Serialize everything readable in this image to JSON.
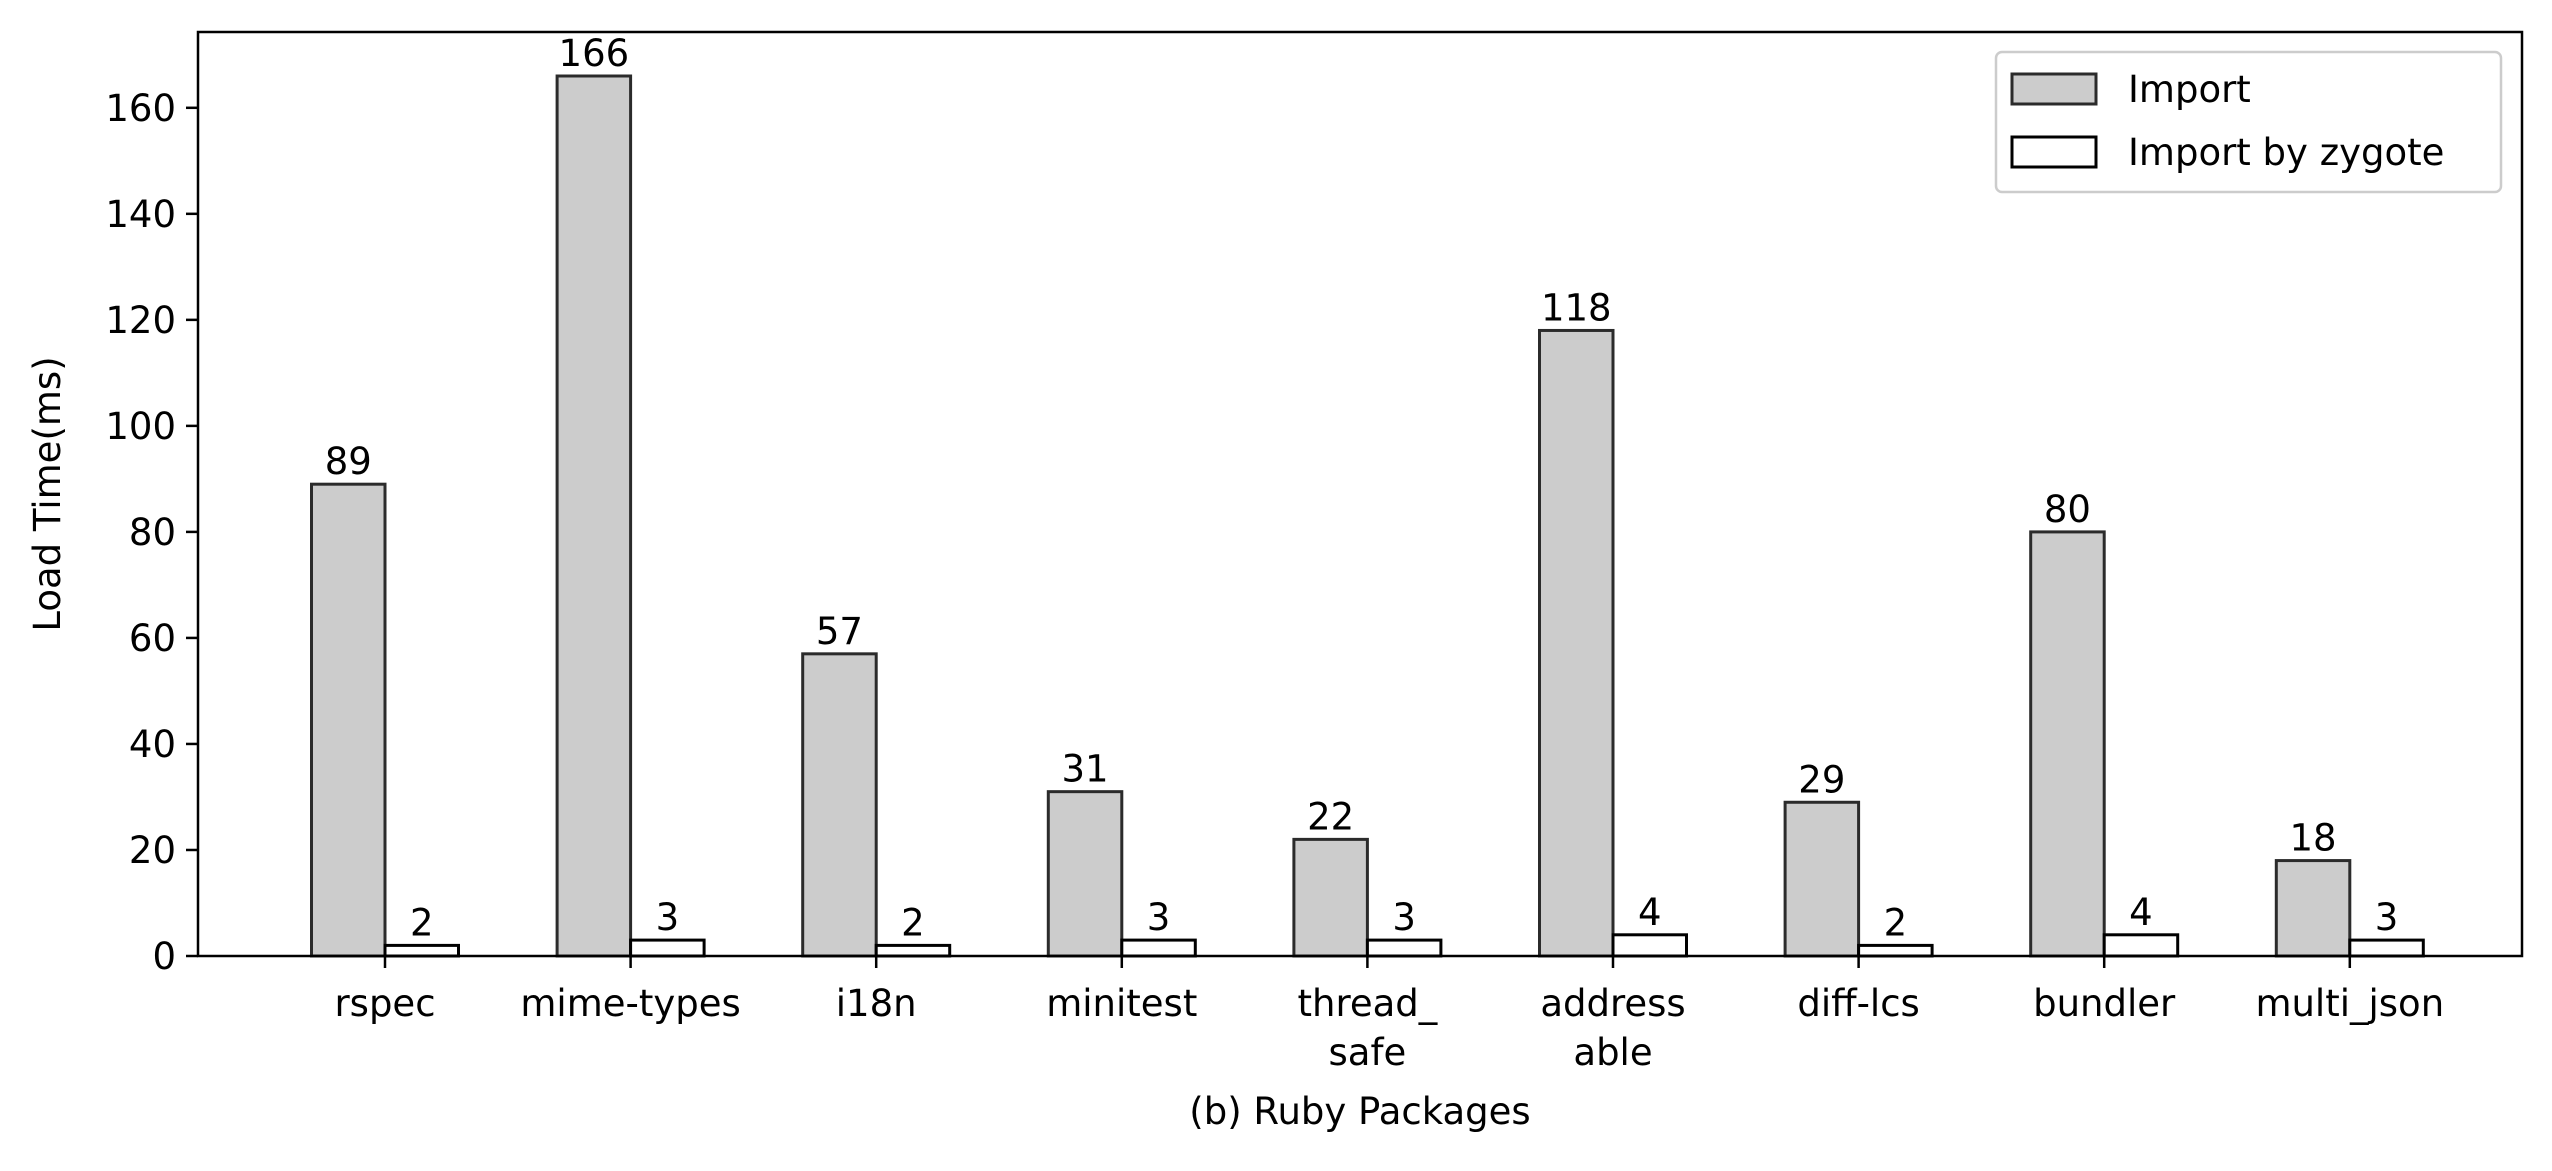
{
  "chart_data": {
    "type": "bar",
    "categories": [
      [
        "rspec"
      ],
      [
        "mime-types"
      ],
      [
        "i18n"
      ],
      [
        "minitest"
      ],
      [
        "thread_",
        "safe"
      ],
      [
        "address",
        "able"
      ],
      [
        "diff-lcs"
      ],
      [
        "bundler"
      ],
      [
        "multi_json"
      ]
    ],
    "series": [
      {
        "name": "Import",
        "values": [
          89,
          166,
          57,
          31,
          22,
          118,
          29,
          80,
          18
        ],
        "fill": "#cccccc",
        "stroke": "#2b2b2b"
      },
      {
        "name": "Import by zygote",
        "values": [
          2,
          3,
          2,
          3,
          3,
          4,
          2,
          4,
          3
        ],
        "fill": "#ffffff",
        "stroke": "#000000"
      }
    ],
    "xlabel": "(b) Ruby Packages",
    "ylabel": "Load Time(ms)",
    "ylim": [
      0,
      174.3
    ],
    "yticks": [
      0,
      20,
      40,
      60,
      80,
      100,
      120,
      140,
      160
    ],
    "legend_position": "top-right",
    "grid": false
  }
}
